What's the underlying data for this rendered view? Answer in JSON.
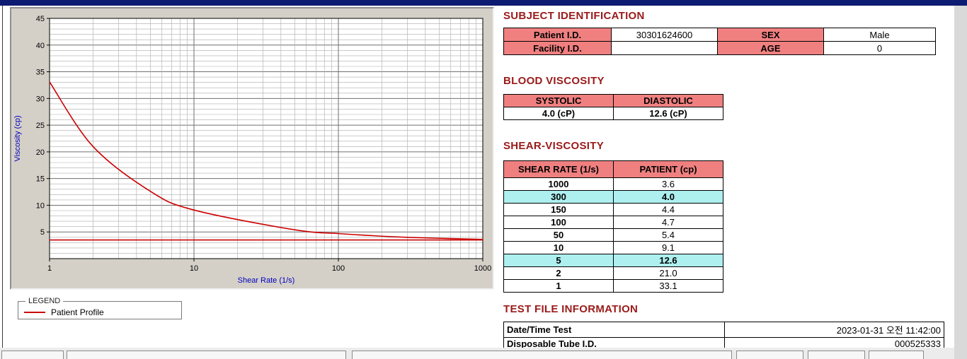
{
  "colors": {
    "titlebar_navy": "#0E1B72",
    "accent_pink": "#F08080",
    "highlight_cyan": "#AEEFEF",
    "section_title_red": "#9A1A1A",
    "series_red": "#CC0000",
    "axis_label_blue": "#0000BB"
  },
  "subject_identification": {
    "title": "SUBJECT IDENTIFICATION",
    "rows": [
      {
        "label1": "Patient I.D.",
        "value1": "30301624600",
        "label2": "SEX",
        "value2": "Male"
      },
      {
        "label1": "Facility I.D.",
        "value1": "",
        "label2": "AGE",
        "value2": "0"
      }
    ]
  },
  "blood_viscosity": {
    "title": "BLOOD VISCOSITY",
    "columns": [
      "SYSTOLIC",
      "DIASTOLIC"
    ],
    "values": [
      "4.0 (cP)",
      "12.6 (cP)"
    ]
  },
  "shear_viscosity": {
    "title": "SHEAR-VISCOSITY",
    "columns": [
      "SHEAR RATE (1/s)",
      "PATIENT (cp)"
    ],
    "rows": [
      {
        "shear_rate": "1000",
        "patient": "3.6",
        "highlight": false
      },
      {
        "shear_rate": "300",
        "patient": "4.0",
        "highlight": true
      },
      {
        "shear_rate": "150",
        "patient": "4.4",
        "highlight": false
      },
      {
        "shear_rate": "100",
        "patient": "4.7",
        "highlight": false
      },
      {
        "shear_rate": "50",
        "patient": "5.4",
        "highlight": false
      },
      {
        "shear_rate": "10",
        "patient": "9.1",
        "highlight": false
      },
      {
        "shear_rate": "5",
        "patient": "12.6",
        "highlight": true
      },
      {
        "shear_rate": "2",
        "patient": "21.0",
        "highlight": false
      },
      {
        "shear_rate": "1",
        "patient": "33.1",
        "highlight": false
      }
    ]
  },
  "test_file_information": {
    "title": "TEST FILE INFORMATION",
    "rows": [
      {
        "label": "Date/Time Test",
        "value": "2023-01-31   오전 11:42:00"
      },
      {
        "label": "Disposable Tube I.D.",
        "value": "000525333"
      }
    ]
  },
  "legend": {
    "label": "LEGEND",
    "series": "Patient Profile"
  },
  "chart_data": {
    "type": "line",
    "title": "",
    "xlabel": "Shear Rate (1/s)",
    "ylabel": "Viscosity (cp)",
    "x_scale": "log",
    "xlim": [
      1,
      1000
    ],
    "ylim": [
      0,
      45
    ],
    "x_major_ticks": [
      1,
      10,
      100,
      1000
    ],
    "y_major_ticks": [
      5,
      10,
      15,
      20,
      25,
      30,
      35,
      40,
      45
    ],
    "grid": "on",
    "legend_position": "below-left",
    "series": [
      {
        "name": "Patient Profile",
        "color": "#CC0000",
        "x": [
          1,
          2,
          5,
          10,
          50,
          100,
          150,
          300,
          1000
        ],
        "y": [
          33.1,
          21.0,
          12.6,
          9.1,
          5.4,
          4.7,
          4.4,
          4.0,
          3.6
        ]
      },
      {
        "name": "reference-line",
        "color": "#CC0000",
        "x": [
          1,
          1000
        ],
        "y": [
          3.5,
          3.5
        ]
      }
    ]
  }
}
